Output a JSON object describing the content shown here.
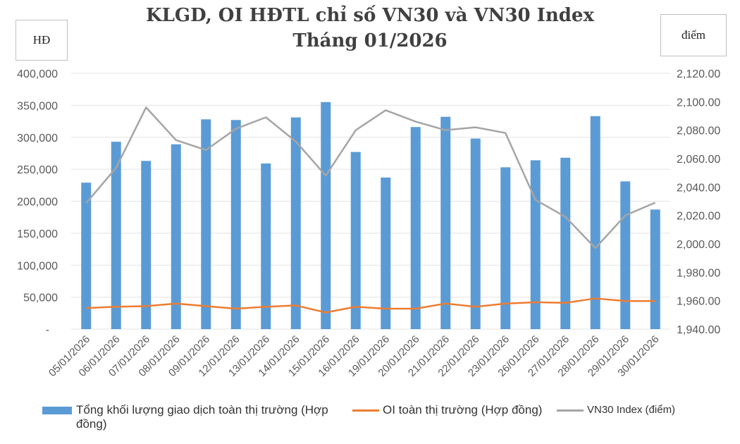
{
  "chart_data": {
    "type": "bar+line",
    "title": [
      "KLGD, OI HĐTL chỉ số VN30 và VN30 Index",
      "Tháng 01/2026"
    ],
    "y_left_label": "HĐ",
    "y_right_label": "điểm",
    "categories": [
      "05/01/2026",
      "06/01/2026",
      "07/01/2026",
      "08/01/2026",
      "09/01/2026",
      "12/01/2026",
      "13/01/2026",
      "14/01/2026",
      "15/01/2026",
      "16/01/2026",
      "19/01/2026",
      "20/01/2026",
      "21/01/2026",
      "22/01/2026",
      "23/01/2026",
      "26/01/2026",
      "27/01/2026",
      "28/01/2026",
      "29/01/2026",
      "30/01/2026"
    ],
    "y_left": {
      "range": [
        0,
        400000
      ],
      "ticks": [
        "-",
        "50,000",
        "100,000",
        "150,000",
        "200,000",
        "250,000",
        "300,000",
        "350,000",
        "400,000"
      ]
    },
    "y_right": {
      "range": [
        1940,
        2120
      ],
      "ticks": [
        "1,940.00",
        "1,960.00",
        "1,980.00",
        "2,000.00",
        "2,020.00",
        "2,040.00",
        "2,060.00",
        "2,080.00",
        "2,100.00",
        "2,120.00"
      ]
    },
    "grid": true,
    "legend_position": "bottom",
    "series": [
      {
        "name": "Tổng khối lượng giao dịch toàn thị trường (Hợp đồng)",
        "type": "bar",
        "axis": "left",
        "color": "#5b9bd5",
        "values": [
          229000,
          293000,
          263000,
          289000,
          328000,
          327000,
          259000,
          331000,
          355000,
          277000,
          237000,
          316000,
          332000,
          298000,
          253000,
          264000,
          268000,
          333000,
          231000,
          187000
        ]
      },
      {
        "name": "OI toàn thị trường (Hợp đồng)",
        "type": "line",
        "axis": "left",
        "color": "#ed7d31",
        "values": [
          33000,
          35000,
          36000,
          40000,
          36000,
          32000,
          35000,
          37000,
          26000,
          35000,
          32000,
          32000,
          40000,
          35000,
          40000,
          42000,
          41000,
          48000,
          44000,
          44000
        ]
      },
      {
        "name": "VN30 Index (điểm)",
        "type": "line",
        "axis": "right",
        "color": "#a5a5a5",
        "values": [
          2028.7,
          2053.5,
          2096,
          2073,
          2066,
          2081,
          2089,
          2072,
          2048,
          2080,
          2094,
          2086,
          2080,
          2082,
          2078,
          2031,
          2019,
          1997,
          2020,
          2029
        ]
      }
    ]
  }
}
